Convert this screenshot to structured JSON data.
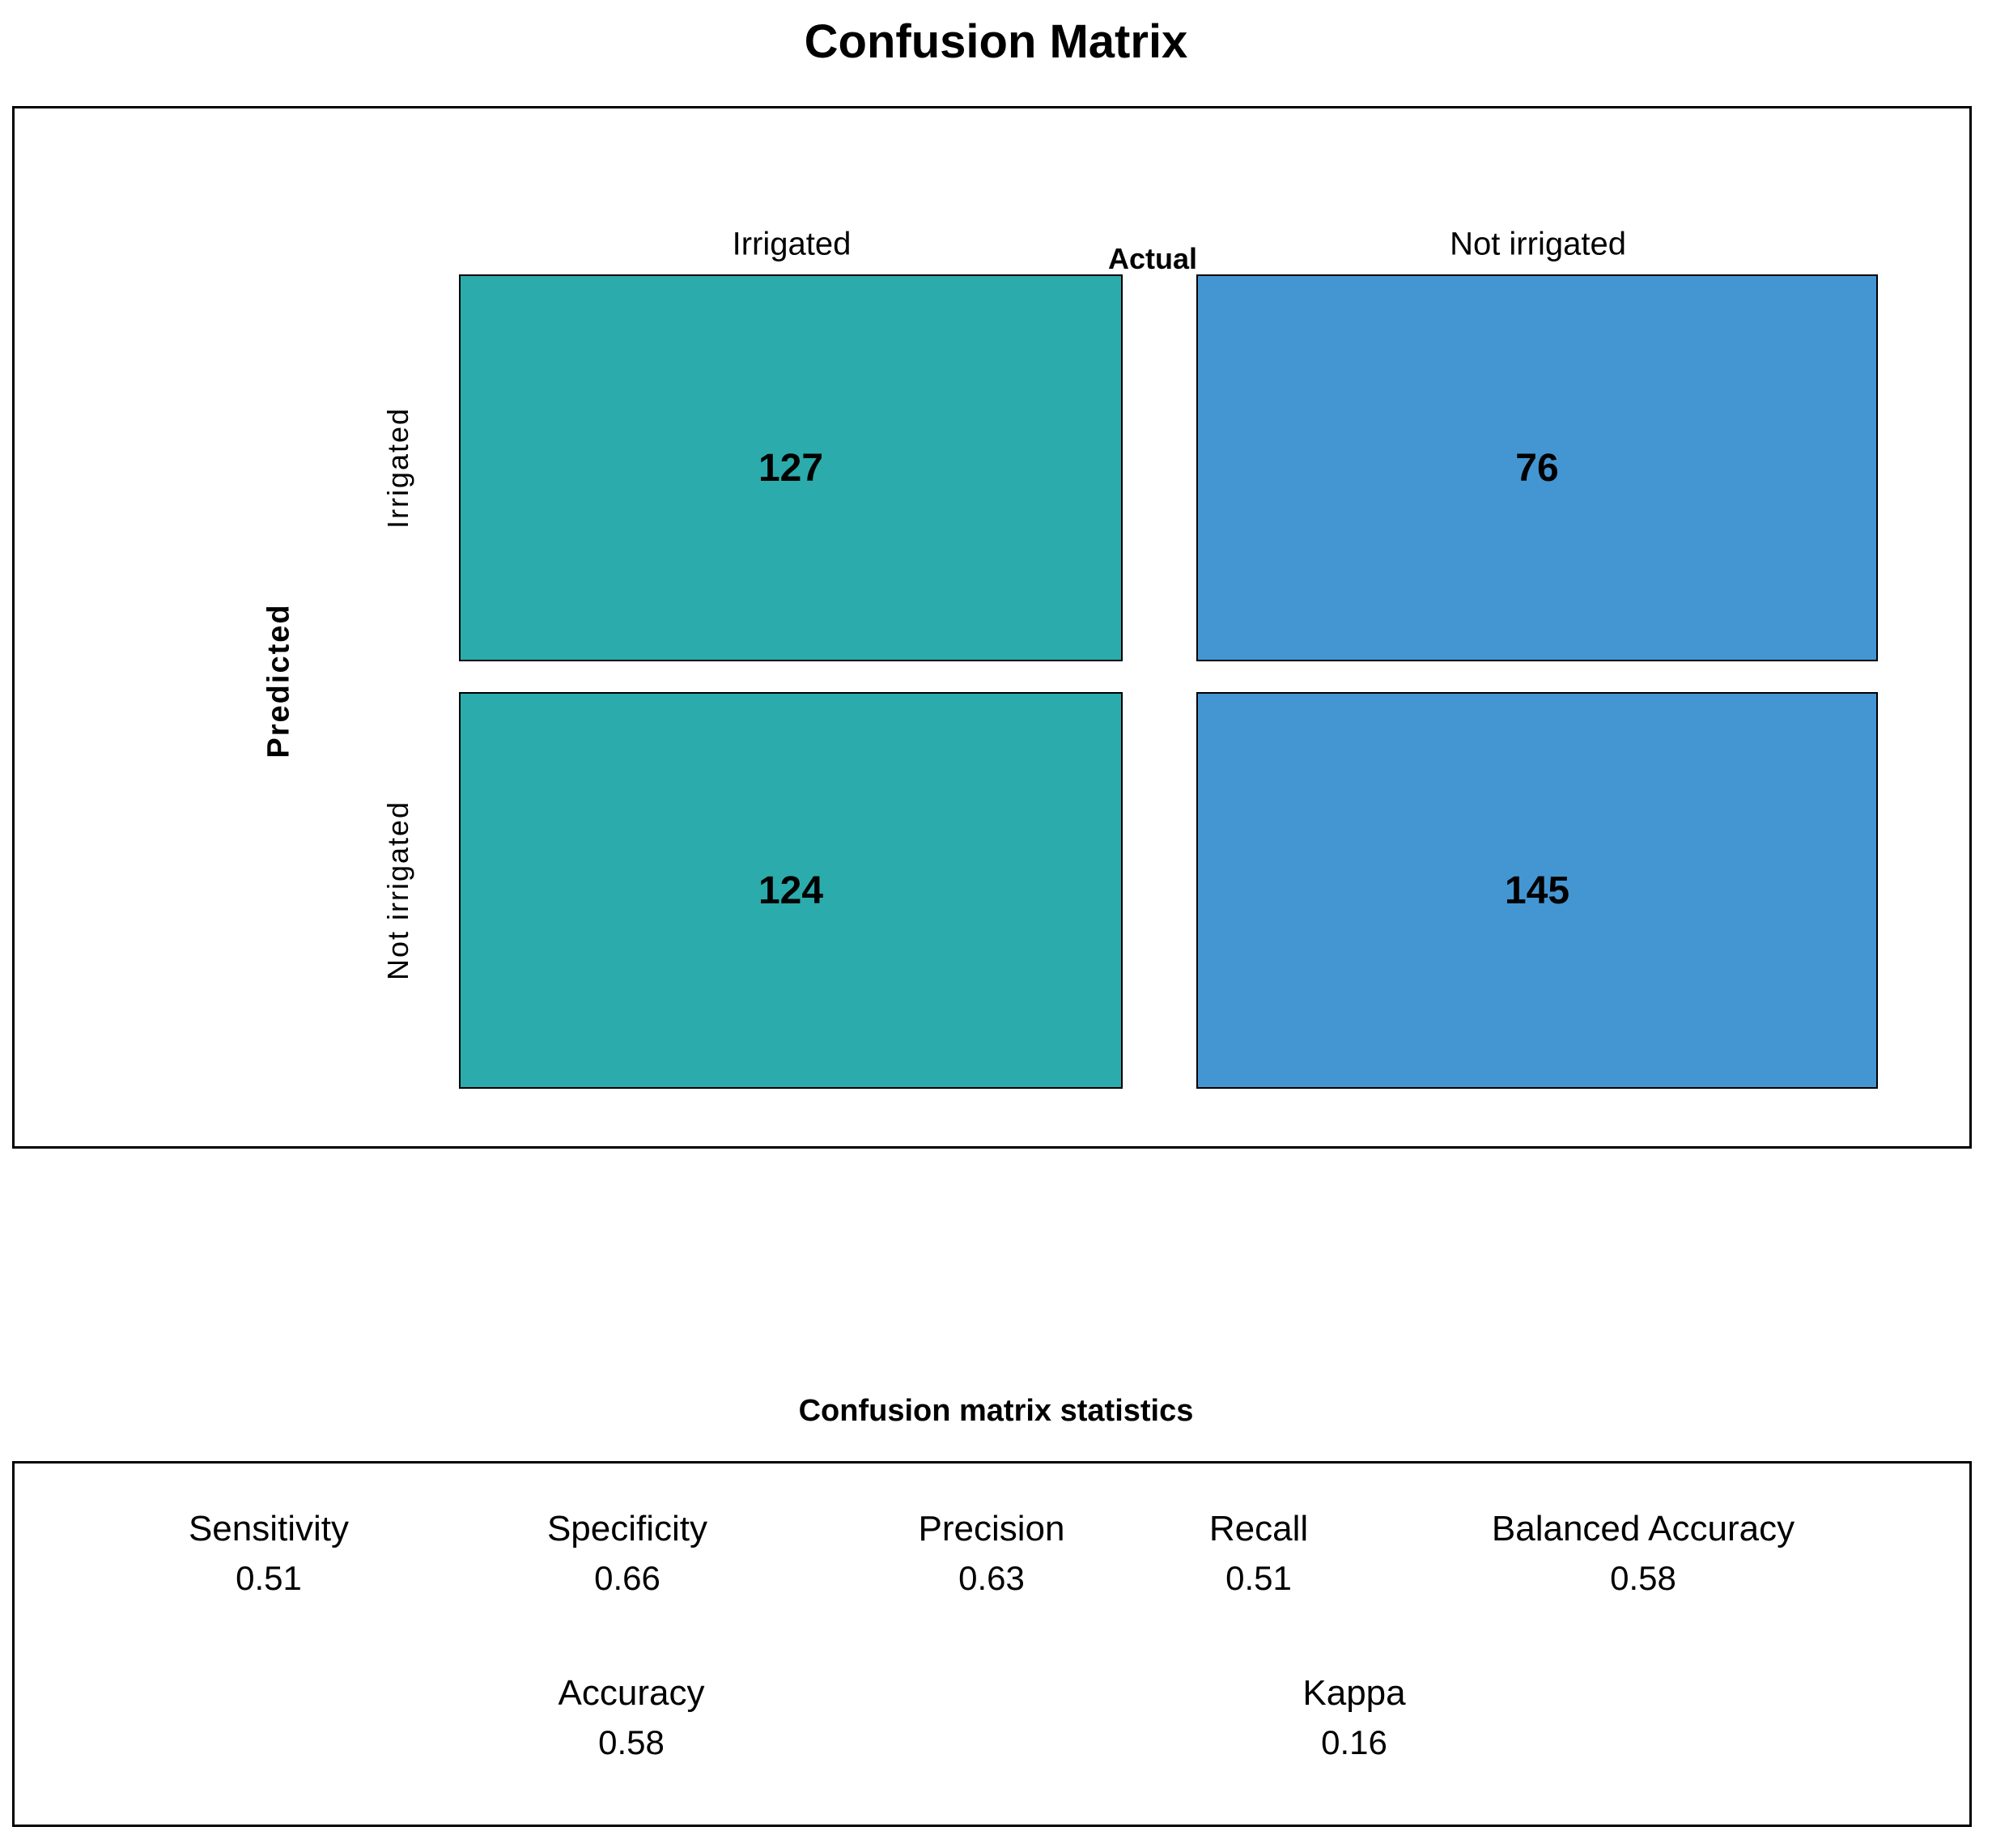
{
  "chart_data": {
    "type": "heatmap",
    "title": "Confusion Matrix",
    "x_axis_label": "Actual",
    "y_axis_label": "Predicted",
    "x_categories": [
      "Irrigated",
      "Not irrigated"
    ],
    "y_categories": [
      "Irrigated",
      "Not irrigated"
    ],
    "values": [
      [
        127,
        76
      ],
      [
        124,
        145
      ]
    ],
    "cell_colors": [
      [
        "#2BABAC",
        "#4496D2"
      ],
      [
        "#2BABAC",
        "#4496D2"
      ]
    ],
    "legend": "none",
    "grid": "off",
    "statistics": {
      "heading": "Confusion matrix statistics",
      "row1": [
        {
          "label": "Sensitivity",
          "value": "0.51"
        },
        {
          "label": "Specificity",
          "value": "0.66"
        },
        {
          "label": "Precision",
          "value": "0.63"
        },
        {
          "label": "Recall",
          "value": "0.51"
        },
        {
          "label": "Balanced Accuracy",
          "value": "0.58"
        }
      ],
      "row2": [
        {
          "label": "Accuracy",
          "value": "0.58"
        },
        {
          "label": "Kappa",
          "value": "0.16"
        }
      ]
    }
  },
  "colors": {
    "irrigated_fill": "#2BABAC",
    "not_irrigated_fill": "#4496D2",
    "border": "#000000",
    "text": "#000000"
  }
}
